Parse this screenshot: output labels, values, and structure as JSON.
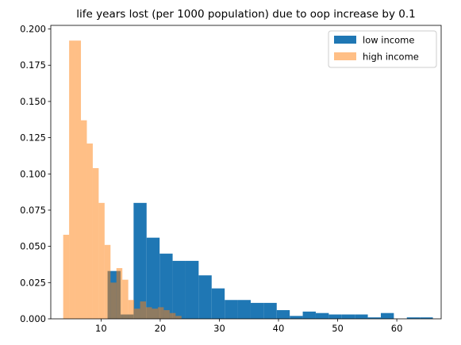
{
  "chart_data": {
    "type": "histogram",
    "title": "life years lost (per 1000 population) due to oop increase by 0.1",
    "xlabel": "",
    "ylabel": "",
    "xlim": [
      1.5,
      67.5
    ],
    "ylim": [
      0,
      0.2025
    ],
    "x_ticks": [
      10,
      20,
      30,
      40,
      50,
      60
    ],
    "y_ticks": [
      0.0,
      0.025,
      0.05,
      0.075,
      0.1,
      0.125,
      0.15,
      0.175,
      0.2
    ],
    "grid": false,
    "legend": {
      "position": "top-right"
    },
    "series": [
      {
        "name": "low income",
        "color": "#1f77b4",
        "alpha": 1.0,
        "bins": [
          [
            11.1,
            13.3,
            0.033
          ],
          [
            13.3,
            15.5,
            0.003
          ],
          [
            15.5,
            17.7,
            0.08
          ],
          [
            17.7,
            19.9,
            0.056
          ],
          [
            19.9,
            22.1,
            0.045
          ],
          [
            22.1,
            24.3,
            0.04
          ],
          [
            24.3,
            26.5,
            0.04
          ],
          [
            26.5,
            28.7,
            0.03
          ],
          [
            28.7,
            30.9,
            0.021
          ],
          [
            30.9,
            33.1,
            0.013
          ],
          [
            33.1,
            35.3,
            0.013
          ],
          [
            35.3,
            37.5,
            0.011
          ],
          [
            37.5,
            39.7,
            0.011
          ],
          [
            39.7,
            41.9,
            0.006
          ],
          [
            41.9,
            44.1,
            0.002
          ],
          [
            44.1,
            46.3,
            0.005
          ],
          [
            46.3,
            48.5,
            0.004
          ],
          [
            48.5,
            50.7,
            0.003
          ],
          [
            50.7,
            52.9,
            0.003
          ],
          [
            52.9,
            55.1,
            0.003
          ],
          [
            55.1,
            57.3,
            0.001
          ],
          [
            57.3,
            59.5,
            0.004
          ],
          [
            59.5,
            61.7,
            0.0
          ],
          [
            61.7,
            63.9,
            0.001
          ],
          [
            63.9,
            66.1,
            0.001
          ]
        ]
      },
      {
        "name": "high income",
        "color": "#ff7f0e",
        "alpha": 0.5,
        "bins": [
          [
            3.6,
            4.6,
            0.058
          ],
          [
            4.6,
            5.6,
            0.192
          ],
          [
            5.6,
            6.6,
            0.192
          ],
          [
            6.6,
            7.6,
            0.137
          ],
          [
            7.6,
            8.6,
            0.121
          ],
          [
            8.6,
            9.6,
            0.104
          ],
          [
            9.6,
            10.6,
            0.08
          ],
          [
            10.6,
            11.6,
            0.051
          ],
          [
            11.6,
            12.6,
            0.025
          ],
          [
            12.6,
            13.6,
            0.035
          ],
          [
            13.6,
            14.6,
            0.027
          ],
          [
            14.6,
            15.6,
            0.013
          ],
          [
            15.6,
            16.6,
            0.007
          ],
          [
            16.6,
            17.6,
            0.012
          ],
          [
            17.6,
            18.6,
            0.008
          ],
          [
            18.6,
            19.6,
            0.007
          ],
          [
            19.6,
            20.6,
            0.008
          ],
          [
            20.6,
            21.6,
            0.006
          ],
          [
            21.6,
            22.6,
            0.004
          ],
          [
            22.6,
            23.6,
            0.002
          ]
        ]
      }
    ]
  }
}
